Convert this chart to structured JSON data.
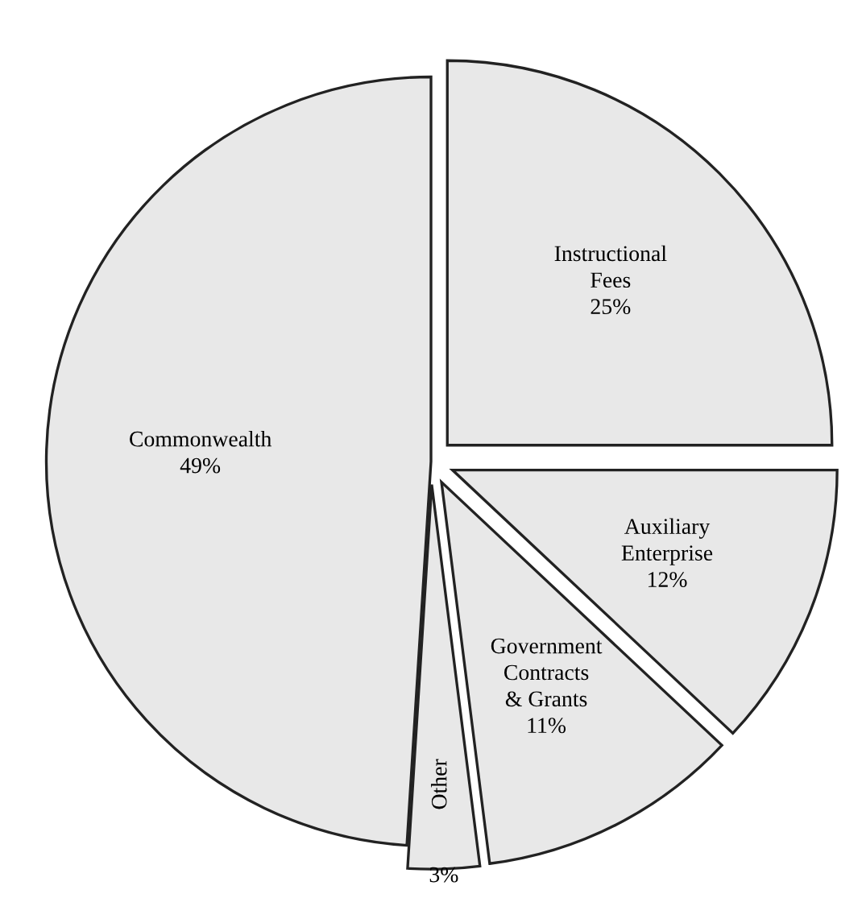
{
  "chart_data": {
    "type": "pie",
    "categories": [
      "Instructional\nFees",
      "Auxiliary\nEnterprise",
      "Government\nContracts\n& Grants",
      "Other",
      "Commonwealth"
    ],
    "values": [
      25,
      12,
      11,
      3,
      49
    ],
    "value_labels": [
      "25%",
      "12%",
      "11%",
      "3%",
      "49%"
    ],
    "colors": [
      "#e8e8e8",
      "#e8e8e8",
      "#e8e8e8",
      "#e8e8e8",
      "#e8e8e8"
    ],
    "legend": false
  }
}
